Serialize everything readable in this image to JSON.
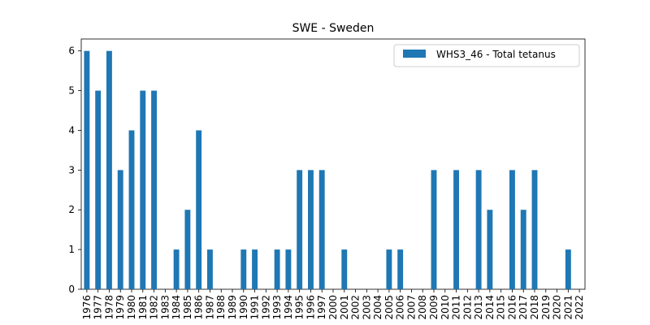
{
  "chart_data": {
    "type": "bar",
    "title": "SWE - Sweden",
    "xlabel": "",
    "ylabel": "",
    "categories": [
      "1976",
      "1977",
      "1978",
      "1979",
      "1980",
      "1981",
      "1982",
      "1983",
      "1984",
      "1985",
      "1986",
      "1987",
      "1988",
      "1989",
      "1990",
      "1991",
      "1992",
      "1993",
      "1994",
      "1995",
      "1996",
      "1997",
      "2000",
      "2001",
      "2002",
      "2003",
      "2004",
      "2005",
      "2006",
      "2007",
      "2008",
      "2009",
      "2010",
      "2011",
      "2012",
      "2013",
      "2014",
      "2015",
      "2016",
      "2017",
      "2018",
      "2019",
      "2020",
      "2021",
      "2022"
    ],
    "series": [
      {
        "name": "WHS3_46 - Total tetanus",
        "color": "#1f77b4",
        "values": [
          6,
          5,
          6,
          3,
          4,
          5,
          5,
          0,
          1,
          2,
          4,
          1,
          0,
          0,
          1,
          1,
          0,
          1,
          1,
          3,
          3,
          3,
          0,
          1,
          0,
          0,
          0,
          1,
          1,
          0,
          0,
          3,
          0,
          3,
          0,
          3,
          2,
          0,
          3,
          2,
          3,
          0,
          0,
          1,
          0
        ]
      }
    ],
    "ylim": [
      0,
      6.3
    ],
    "yticks": [
      0,
      1,
      2,
      3,
      4,
      5,
      6
    ],
    "grid": false,
    "legend": "top-right"
  }
}
